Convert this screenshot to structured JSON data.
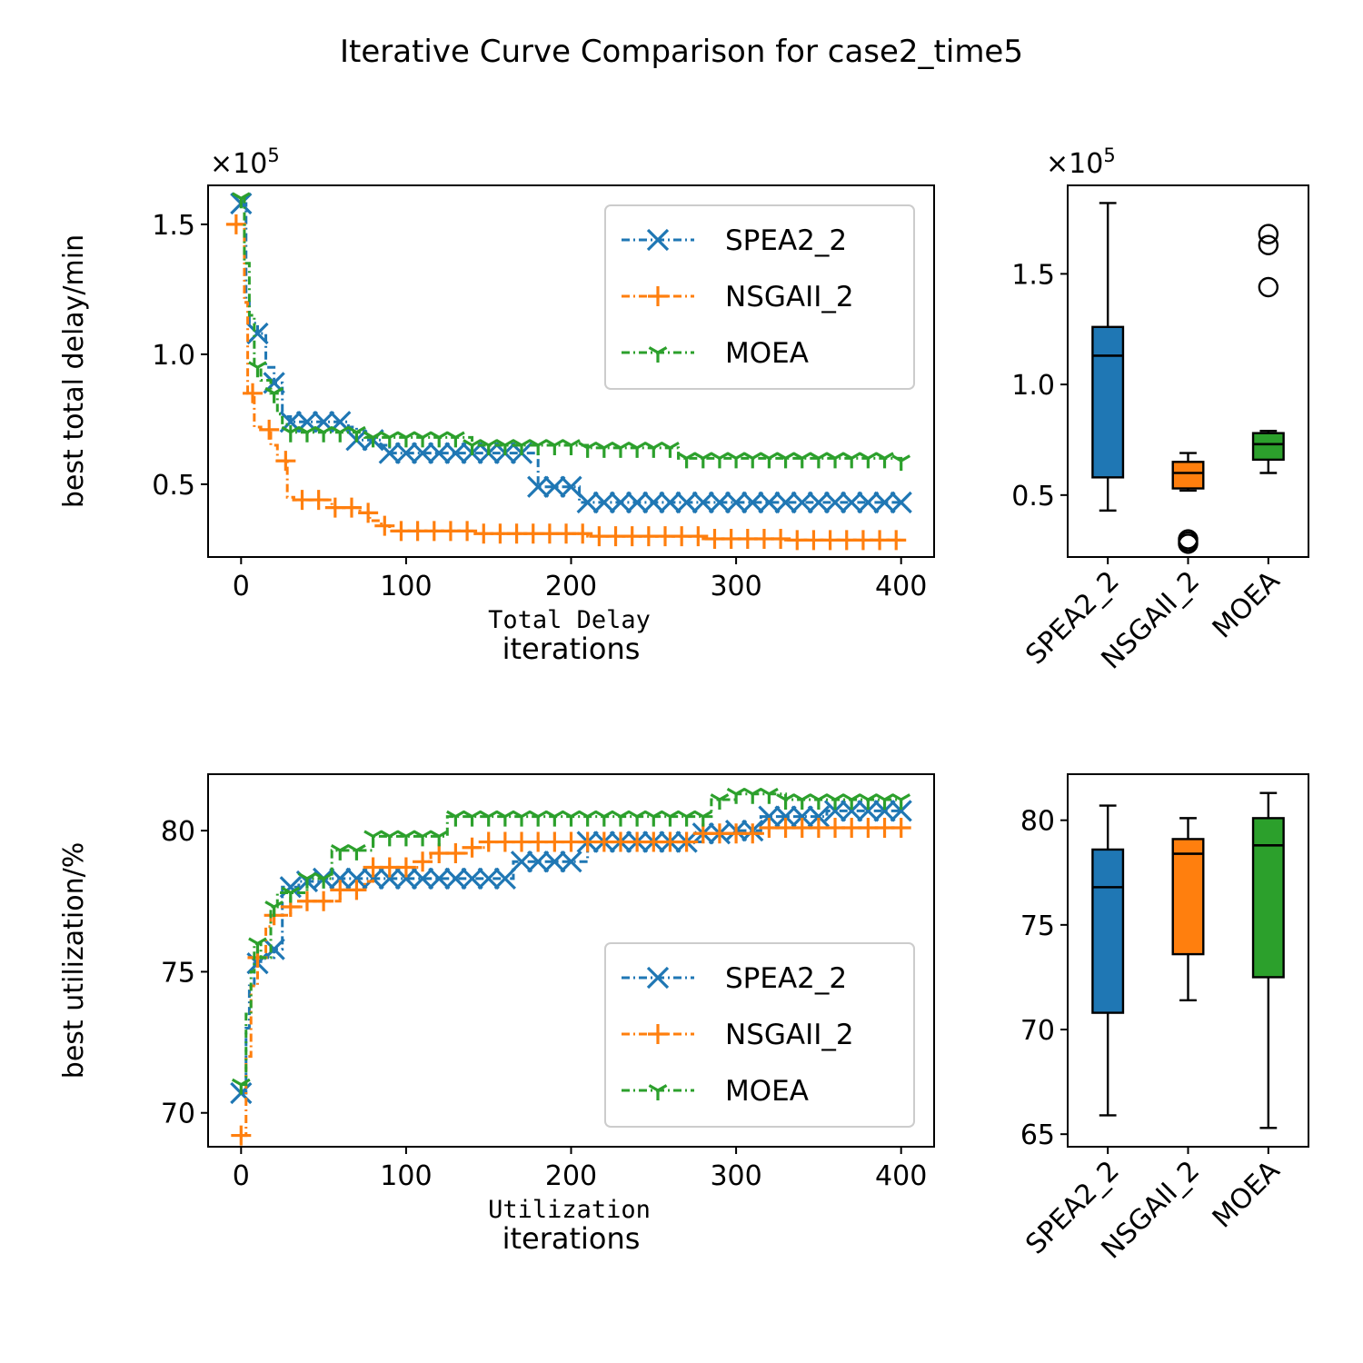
{
  "figure": {
    "title": "Iterative Curve Comparison for case2_time5",
    "colors": {
      "SPEA2_2": "#1f77b4",
      "NSGAII_2": "#ff7f0e",
      "MOEA": "#2ca02c"
    }
  },
  "chart_data": [
    {
      "type": "line",
      "panel": "delay-lines",
      "caption": "Total Delay",
      "xlabel": "iterations",
      "ylabel": "best total delay/min",
      "scale_note": "×10",
      "scale_exp": "5",
      "xlim": [
        -20,
        420
      ],
      "ylim": [
        0.22,
        1.65
      ],
      "xticks": [
        0,
        100,
        200,
        300,
        400
      ],
      "yticks": [
        0.5,
        1.0,
        1.5
      ],
      "ytick_labels": [
        "0.5",
        "1.0",
        "1.5"
      ],
      "legend_position": "upper right",
      "series": [
        {
          "name": "SPEA2_2",
          "marker": "x",
          "step": 10,
          "points": [
            [
              0,
              1.58
            ],
            [
              3,
              1.2
            ],
            [
              5,
              1.12
            ],
            [
              10,
              1.08
            ],
            [
              15,
              0.95
            ],
            [
              20,
              0.89
            ],
            [
              25,
              0.76
            ],
            [
              30,
              0.74
            ],
            [
              65,
              0.72
            ],
            [
              70,
              0.67
            ],
            [
              85,
              0.65
            ],
            [
              90,
              0.62
            ],
            [
              175,
              0.62
            ],
            [
              180,
              0.49
            ],
            [
              200,
              0.49
            ],
            [
              205,
              0.43
            ],
            [
              400,
              0.43
            ]
          ]
        },
        {
          "name": "NSGAII_2",
          "marker": "+",
          "step": 10,
          "points": [
            [
              -3,
              1.5
            ],
            [
              0,
              1.5
            ],
            [
              2,
              1.2
            ],
            [
              4,
              0.85
            ],
            [
              8,
              0.72
            ],
            [
              12,
              0.71
            ],
            [
              18,
              0.65
            ],
            [
              22,
              0.59
            ],
            [
              28,
              0.45
            ],
            [
              32,
              0.44
            ],
            [
              55,
              0.41
            ],
            [
              72,
              0.39
            ],
            [
              78,
              0.36
            ],
            [
              85,
              0.34
            ],
            [
              90,
              0.32
            ],
            [
              140,
              0.31
            ],
            [
              210,
              0.3
            ],
            [
              280,
              0.29
            ],
            [
              330,
              0.285
            ],
            [
              400,
              0.285
            ]
          ]
        },
        {
          "name": "MOEA",
          "marker": "1",
          "step": 10,
          "points": [
            [
              0,
              1.6
            ],
            [
              2,
              1.35
            ],
            [
              5,
              1.15
            ],
            [
              8,
              0.95
            ],
            [
              12,
              0.9
            ],
            [
              18,
              0.85
            ],
            [
              22,
              0.77
            ],
            [
              25,
              0.73
            ],
            [
              30,
              0.7
            ],
            [
              75,
              0.68
            ],
            [
              80,
              0.68
            ],
            [
              140,
              0.65
            ],
            [
              210,
              0.64
            ],
            [
              265,
              0.6
            ],
            [
              400,
              0.59
            ]
          ]
        }
      ]
    },
    {
      "type": "box",
      "panel": "delay-box",
      "scale_note": "×10",
      "scale_exp": "5",
      "categories": [
        "SPEA2_2",
        "NSGAII_2",
        "MOEA"
      ],
      "ylim": [
        0.22,
        1.9
      ],
      "yticks": [
        0.5,
        1.0,
        1.5
      ],
      "ytick_labels": [
        "0.5",
        "1.0",
        "1.5"
      ],
      "boxes": [
        {
          "name": "SPEA2_2",
          "whislo": 0.43,
          "q1": 0.58,
          "med": 1.13,
          "q3": 1.26,
          "whishi": 1.82,
          "fliers": []
        },
        {
          "name": "NSGAII_2",
          "whislo": 0.52,
          "q1": 0.53,
          "med": 0.6,
          "q3": 0.65,
          "whishi": 0.69,
          "fliers": [
            0.28,
            0.29,
            0.3
          ]
        },
        {
          "name": "MOEA",
          "whislo": 0.6,
          "q1": 0.66,
          "med": 0.73,
          "q3": 0.78,
          "whishi": 0.79,
          "fliers": [
            1.44,
            1.63,
            1.68
          ]
        }
      ]
    },
    {
      "type": "line",
      "panel": "util-lines",
      "caption": "Utilization",
      "xlabel": "iterations",
      "ylabel": "best utilization/%",
      "xlim": [
        -20,
        420
      ],
      "ylim": [
        68.8,
        82.0
      ],
      "xticks": [
        0,
        100,
        200,
        300,
        400
      ],
      "yticks": [
        70,
        75,
        80
      ],
      "ytick_labels": [
        "70",
        "75",
        "80"
      ],
      "legend_position": "lower right",
      "series": [
        {
          "name": "SPEA2_2",
          "marker": "x",
          "step": 10,
          "points": [
            [
              0,
              70.7
            ],
            [
              3,
              73.0
            ],
            [
              5,
              74.5
            ],
            [
              8,
              75.3
            ],
            [
              12,
              75.5
            ],
            [
              20,
              75.8
            ],
            [
              25,
              78.0
            ],
            [
              35,
              78.2
            ],
            [
              50,
              78.3
            ],
            [
              160,
              78.3
            ],
            [
              165,
              78.9
            ],
            [
              190,
              78.9
            ],
            [
              210,
              79.6
            ],
            [
              270,
              79.6
            ],
            [
              280,
              79.9
            ],
            [
              300,
              80.0
            ],
            [
              315,
              80.5
            ],
            [
              345,
              80.5
            ],
            [
              355,
              80.7
            ],
            [
              400,
              80.7
            ]
          ]
        },
        {
          "name": "NSGAII_2",
          "marker": "+",
          "step": 10,
          "points": [
            [
              0,
              69.2
            ],
            [
              3,
              72.0
            ],
            [
              6,
              74.5
            ],
            [
              10,
              75.5
            ],
            [
              15,
              76.6
            ],
            [
              18,
              77.0
            ],
            [
              30,
              77.3
            ],
            [
              40,
              77.5
            ],
            [
              60,
              77.9
            ],
            [
              75,
              78.2
            ],
            [
              80,
              78.7
            ],
            [
              110,
              78.9
            ],
            [
              115,
              79.2
            ],
            [
              140,
              79.4
            ],
            [
              150,
              79.6
            ],
            [
              250,
              79.6
            ],
            [
              280,
              79.9
            ],
            [
              320,
              80.1
            ],
            [
              400,
              80.1
            ]
          ]
        },
        {
          "name": "MOEA",
          "marker": "1",
          "step": 10,
          "points": [
            [
              0,
              71.0
            ],
            [
              3,
              73.5
            ],
            [
              6,
              75.0
            ],
            [
              8,
              76.0
            ],
            [
              12,
              75.5
            ],
            [
              18,
              77.3
            ],
            [
              22,
              77.8
            ],
            [
              40,
              78.3
            ],
            [
              55,
              79.3
            ],
            [
              80,
              79.8
            ],
            [
              125,
              80.5
            ],
            [
              270,
              80.5
            ],
            [
              285,
              81.1
            ],
            [
              300,
              81.3
            ],
            [
              330,
              81.1
            ],
            [
              400,
              81.1
            ]
          ]
        }
      ]
    },
    {
      "type": "box",
      "panel": "util-box",
      "categories": [
        "SPEA2_2",
        "NSGAII_2",
        "MOEA"
      ],
      "ylim": [
        64.4,
        82.2
      ],
      "yticks": [
        65,
        70,
        75,
        80
      ],
      "ytick_labels": [
        "65",
        "70",
        "75",
        "80"
      ],
      "boxes": [
        {
          "name": "SPEA2_2",
          "whislo": 65.9,
          "q1": 70.8,
          "med": 76.8,
          "q3": 78.6,
          "whishi": 80.7,
          "fliers": []
        },
        {
          "name": "NSGAII_2",
          "whislo": 71.4,
          "q1": 73.6,
          "med": 78.4,
          "q3": 79.1,
          "whishi": 80.1,
          "fliers": []
        },
        {
          "name": "MOEA",
          "whislo": 65.3,
          "q1": 72.5,
          "med": 78.8,
          "q3": 80.1,
          "whishi": 81.3,
          "fliers": []
        }
      ]
    }
  ]
}
